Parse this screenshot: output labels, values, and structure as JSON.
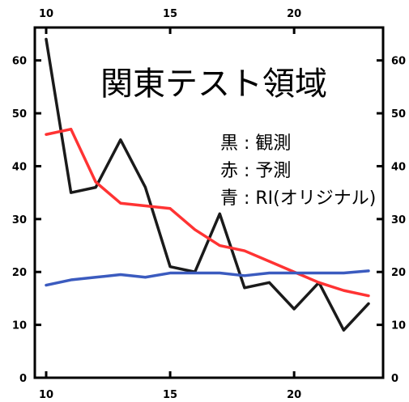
{
  "chart_data": {
    "type": "line",
    "title": "関東テスト領域",
    "xlim": [
      10,
      23
    ],
    "ylim": [
      0,
      65
    ],
    "x_ticks": [
      10,
      15,
      20
    ],
    "y_ticks": [
      0,
      10,
      20,
      30,
      40,
      50,
      60
    ],
    "grid": false,
    "legend_position": "right",
    "legend": [
      "黒 : 観測",
      "赤 : 予測",
      "青 : RI(オリジナル)"
    ],
    "x": [
      10,
      11,
      12,
      13,
      14,
      15,
      16,
      17,
      18,
      19,
      20,
      21,
      22,
      23
    ],
    "series": [
      {
        "color": "#1a1a1a",
        "values": [
          64,
          35,
          36,
          45,
          36,
          21,
          20,
          31,
          17,
          18,
          13,
          18,
          9,
          14
        ]
      },
      {
        "color": "#ff3333",
        "values": [
          46,
          47,
          37,
          33,
          32.5,
          32,
          28,
          25,
          24,
          22,
          20,
          18,
          16.5,
          15.5
        ]
      },
      {
        "color": "#3b5bbf",
        "values": [
          17.5,
          18.5,
          19,
          19.5,
          19,
          19.8,
          19.8,
          19.8,
          19.3,
          19.8,
          19.8,
          19.8,
          19.8,
          20.2
        ]
      }
    ]
  }
}
